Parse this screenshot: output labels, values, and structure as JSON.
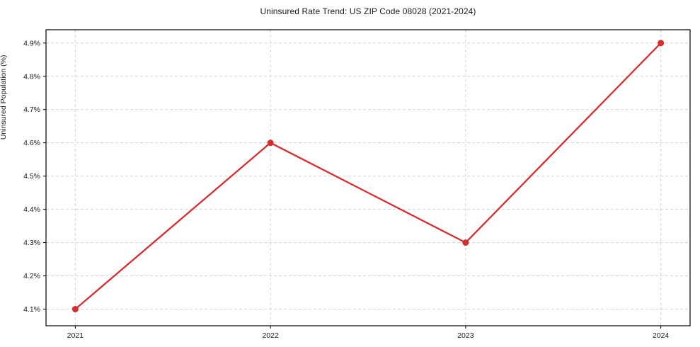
{
  "chart_data": {
    "type": "line",
    "title": "Uninsured Rate Trend: US ZIP Code 08028 (2021-2024)",
    "xlabel": "",
    "ylabel": "Uninsured Population (%)",
    "categories": [
      "2021",
      "2022",
      "2023",
      "2024"
    ],
    "x": [
      2021,
      2022,
      2023,
      2024
    ],
    "series": [
      {
        "name": "Uninsured Rate",
        "values": [
          4.1,
          4.6,
          4.3,
          4.9
        ]
      }
    ],
    "xlim": [
      2020.85,
      2024.15
    ],
    "ylim": [
      4.05,
      4.94
    ],
    "yticks": [
      4.1,
      4.2,
      4.3,
      4.4,
      4.5,
      4.6,
      4.7,
      4.8,
      4.9
    ],
    "ytick_labels": [
      "4.1%",
      "4.2%",
      "4.3%",
      "4.4%",
      "4.5%",
      "4.6%",
      "4.7%",
      "4.8%",
      "4.9%"
    ],
    "xtick_labels": [
      "2021",
      "2022",
      "2023",
      "2024"
    ],
    "grid": true,
    "grid_style": "dashed",
    "legend_position": "none",
    "colors": {
      "line": "#d32f2f",
      "marker": "#d32f2f",
      "grid": "#d3d3d3",
      "frame": "#000000",
      "background": "#ffffff",
      "text": "#1a1a1a"
    }
  }
}
